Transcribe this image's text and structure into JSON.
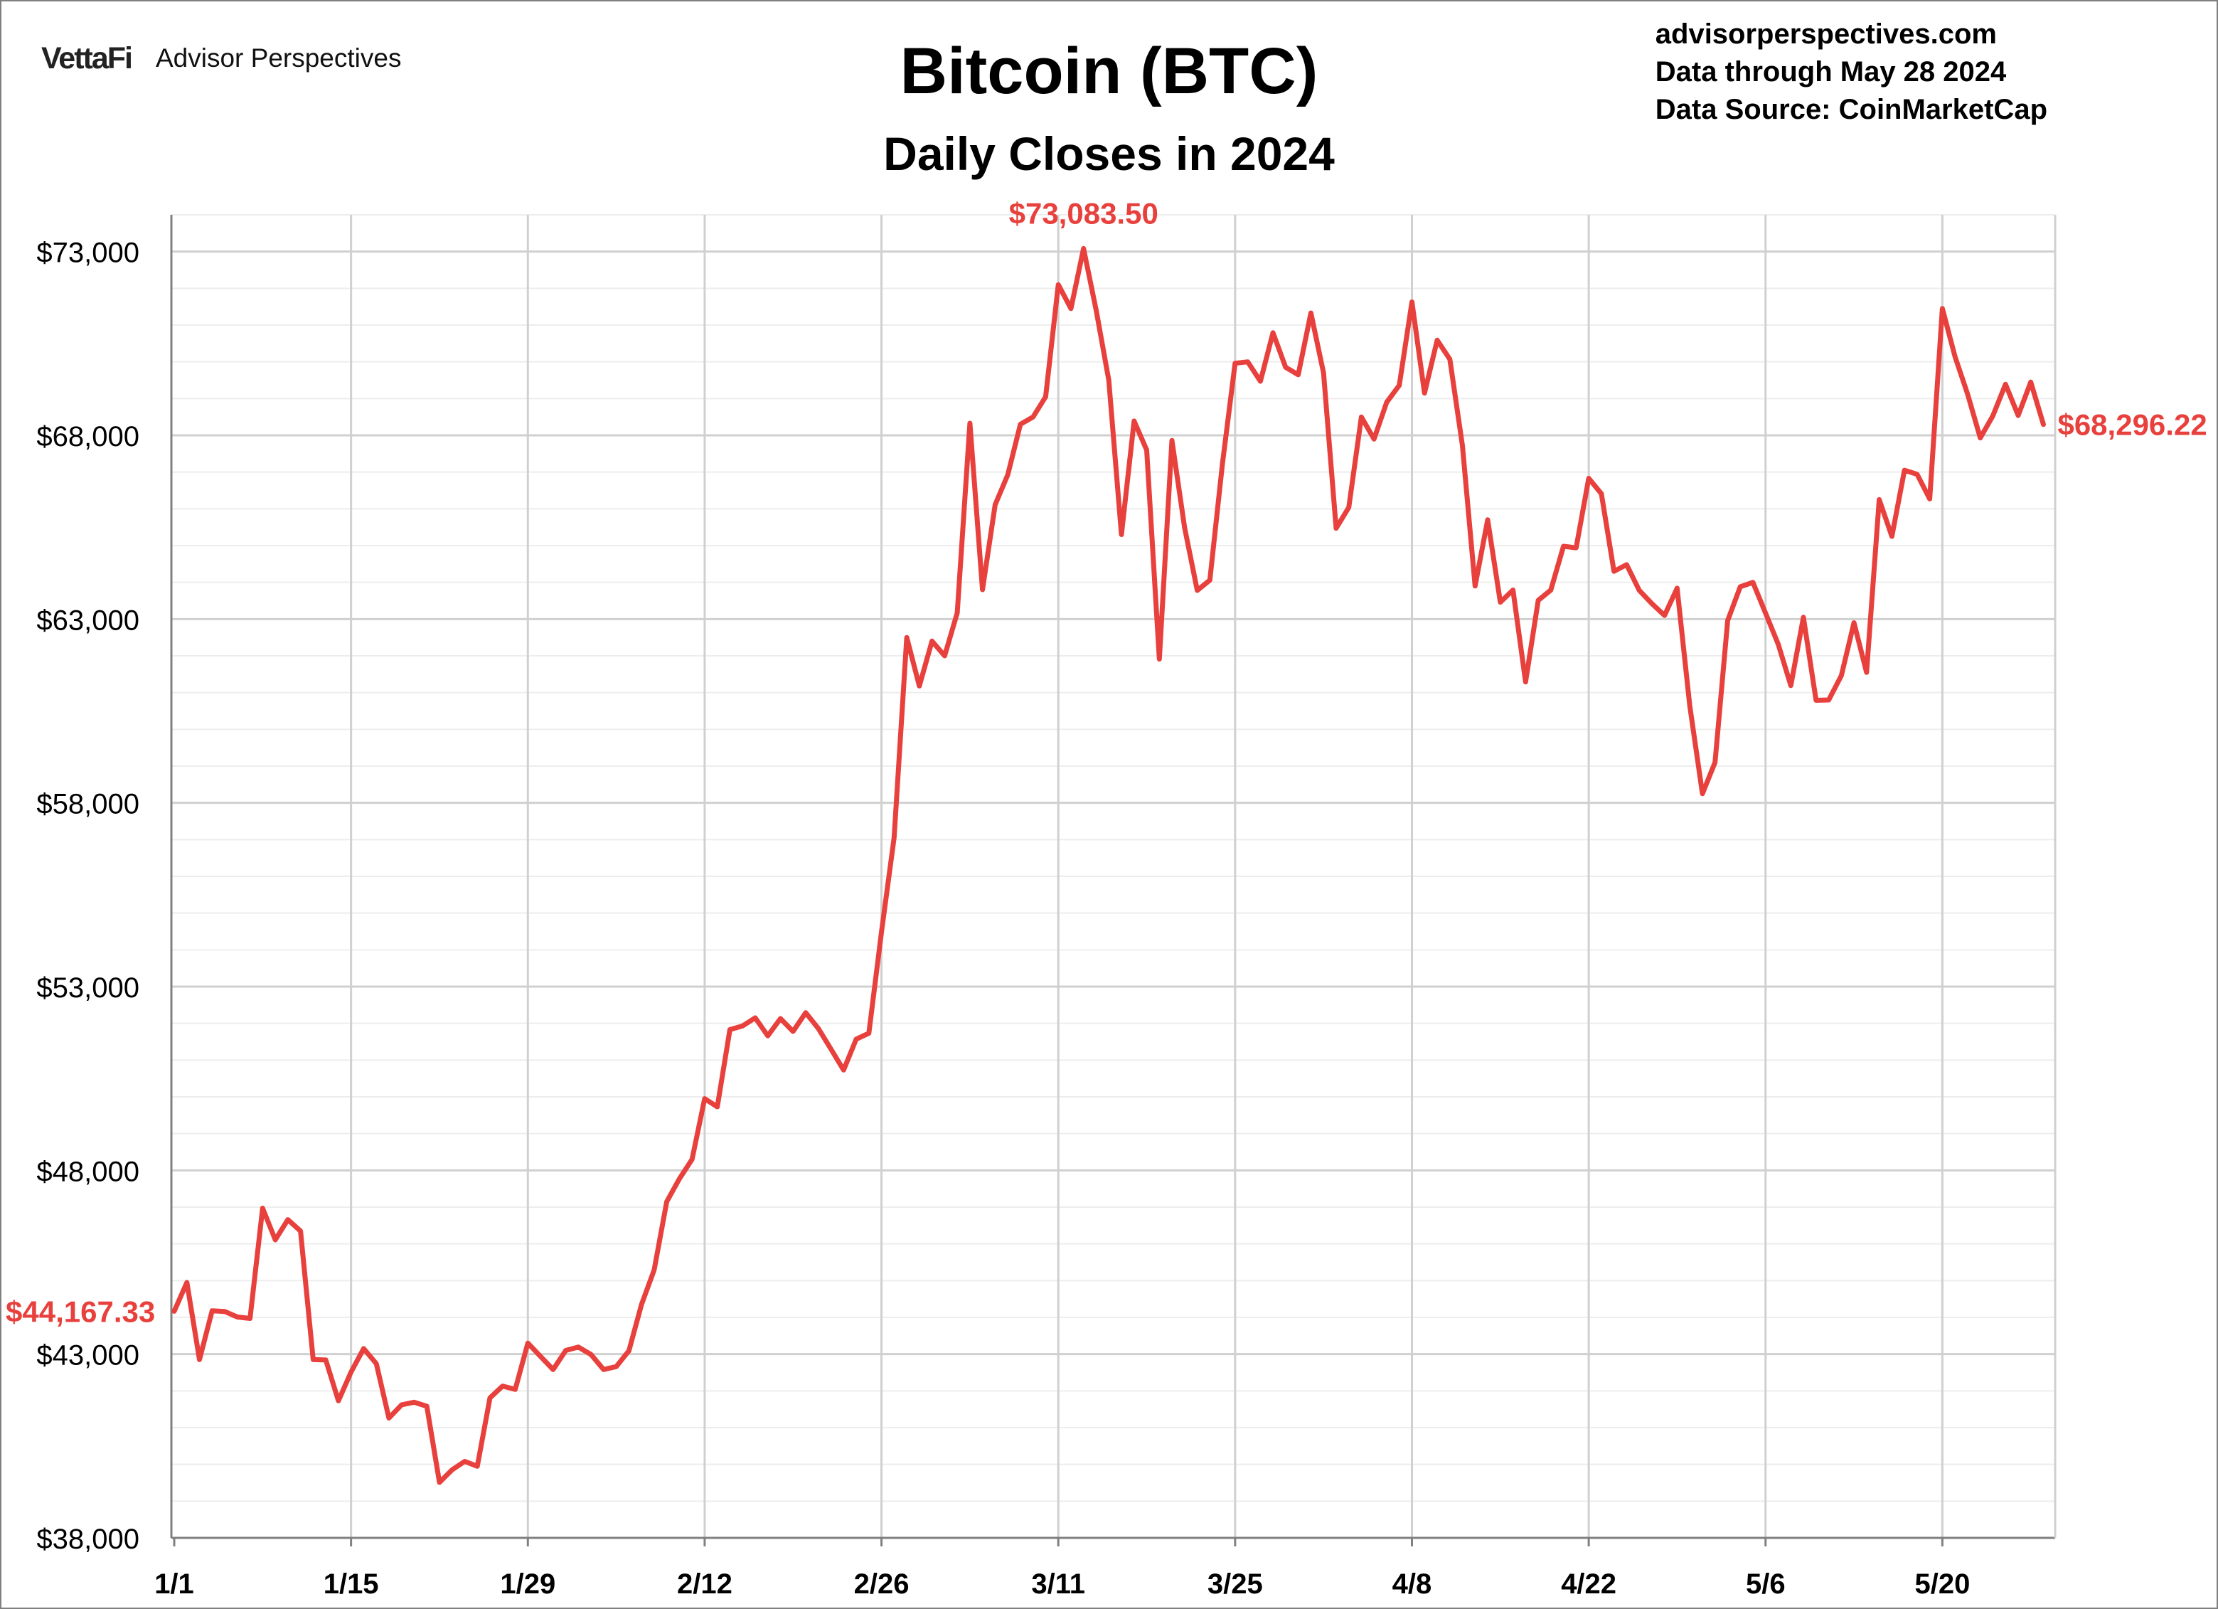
{
  "header": {
    "logo_mark": "VettaFi",
    "logo_name": "Advisor Perspectives",
    "site": "advisorperspectives.com",
    "data_through": "Data through May 28 2024",
    "data_source": "Data Source: CoinMarketCap"
  },
  "colors": {
    "line": "#e8403c",
    "grid": "#d0d0d0",
    "minor_grid": "#ededed",
    "axis": "#808080"
  },
  "chart_data": {
    "type": "line",
    "title": "Bitcoin (BTC)",
    "subtitle": "Daily Closes in 2024",
    "xlabel": "",
    "ylabel": "",
    "ylim": [
      38000,
      74000
    ],
    "yticks": [
      38000,
      43000,
      48000,
      53000,
      58000,
      63000,
      68000,
      73000
    ],
    "ytick_labels": [
      "$38,000",
      "$43,000",
      "$48,000",
      "$53,000",
      "$58,000",
      "$63,000",
      "$68,000",
      "$73,000"
    ],
    "xtick_labels": [
      "1/1",
      "1/15",
      "1/29",
      "2/12",
      "2/26",
      "3/11",
      "3/25",
      "4/8",
      "4/22",
      "5/6",
      "5/20"
    ],
    "x_start": "1/1",
    "x_end": "5/28",
    "grid": true,
    "series": [
      {
        "values": [
          44167.33,
          44950,
          42850,
          44180,
          44160,
          44010,
          43970,
          46970,
          46110,
          46660,
          46350,
          42850,
          42840,
          41730,
          42510,
          43150,
          42740,
          41260,
          41620,
          41690,
          41580,
          39510,
          39850,
          40080,
          39950,
          41810,
          42130,
          42040,
          43300,
          42940,
          42580,
          43100,
          43190,
          42990,
          42580,
          42660,
          43090,
          44350,
          45290,
          47150,
          47770,
          48300,
          49950,
          49730,
          51830,
          51930,
          52150,
          51660,
          52130,
          51780,
          52290,
          51860,
          51300,
          50730,
          51570,
          51730,
          54490,
          57050,
          62500,
          61180,
          62400,
          62000,
          63170,
          68330,
          63800,
          66110,
          66930,
          68300,
          68500,
          69050,
          72100,
          71450,
          73083.5,
          71400,
          69500,
          65300,
          68390,
          67600,
          61910,
          67860,
          65490,
          63780,
          64060,
          67240,
          69960,
          70000,
          69470,
          70790,
          69850,
          69650,
          71330,
          69700,
          65470,
          66040,
          68500,
          67900,
          68900,
          69360,
          71630,
          69150,
          70590,
          70070,
          67720,
          63900,
          65700,
          63460,
          63790,
          61290,
          63510,
          63790,
          64980,
          64940,
          66830,
          66410,
          64300,
          64480,
          63780,
          63420,
          63100,
          63840,
          60640,
          58250,
          59100,
          62960,
          63880,
          64000,
          63160,
          62320,
          61190,
          63050,
          60790,
          60800,
          61460,
          62900,
          61550,
          66250,
          65250,
          67050,
          66940,
          66270,
          71450,
          70140,
          69120,
          67930,
          68530,
          69390,
          68540,
          69450,
          68296.22
        ]
      }
    ],
    "annotations": [
      {
        "label": "$44,167.33",
        "point": "start"
      },
      {
        "label": "$73,083.50",
        "point": "max"
      },
      {
        "label": "$68,296.22",
        "point": "end"
      }
    ]
  }
}
